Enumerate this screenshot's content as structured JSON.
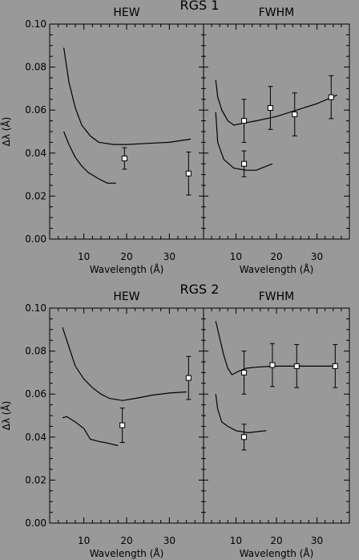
{
  "chart_data": [
    {
      "type": "line",
      "title": "RGS 1",
      "ylabel": "Δλ (Å)",
      "yticks": [
        "0.00",
        "0.02",
        "0.04",
        "0.06",
        "0.08",
        "0.10"
      ],
      "ylim": [
        0,
        0.1
      ],
      "panels": [
        {
          "title": "HEW",
          "xlabel": "Wavelength (Å)",
          "xticks": [
            "10",
            "20",
            "30"
          ],
          "xlim": [
            2,
            38
          ],
          "series": [
            {
              "style": "line",
              "points": [
                [
                  5.3,
                  0.089
                ],
                [
                  6.5,
                  0.073
                ],
                [
                  8,
                  0.061
                ],
                [
                  9.5,
                  0.053
                ],
                [
                  11.5,
                  0.048
                ],
                [
                  13.5,
                  0.045
                ],
                [
                  17,
                  0.044
                ],
                [
                  20,
                  0.044
                ],
                [
                  25,
                  0.0445
                ],
                [
                  30,
                  0.045
                ],
                [
                  35,
                  0.0465
                ]
              ]
            },
            {
              "style": "line",
              "points": [
                [
                  5.3,
                  0.05
                ],
                [
                  6.5,
                  0.044
                ],
                [
                  8,
                  0.038
                ],
                [
                  9.5,
                  0.034
                ],
                [
                  11,
                  0.031
                ],
                [
                  13.5,
                  0.028
                ],
                [
                  15.5,
                  0.026
                ],
                [
                  17.5,
                  0.026
                ]
              ]
            },
            {
              "style": "points",
              "points": [
                [
                  19.5,
                  0.0375,
                  0.005
                ],
                [
                  34.5,
                  0.0305,
                  0.01
                ]
              ]
            }
          ]
        },
        {
          "title": "FWHM",
          "xlabel": "Wavelength (Å)",
          "xticks": [
            "10",
            "20",
            "30"
          ],
          "xlim": [
            2,
            38
          ],
          "series": [
            {
              "style": "line",
              "points": [
                [
                  5,
                  0.074
                ],
                [
                  5.5,
                  0.066
                ],
                [
                  6.5,
                  0.06
                ],
                [
                  8,
                  0.055
                ],
                [
                  9.5,
                  0.053
                ],
                [
                  12,
                  0.054
                ],
                [
                  15,
                  0.055
                ],
                [
                  20,
                  0.057
                ],
                [
                  25,
                  0.06
                ],
                [
                  30,
                  0.063
                ],
                [
                  35,
                  0.067
                ]
              ]
            },
            {
              "style": "line",
              "points": [
                [
                  5,
                  0.059
                ],
                [
                  5.5,
                  0.045
                ],
                [
                  7,
                  0.037
                ],
                [
                  9.5,
                  0.033
                ],
                [
                  12.5,
                  0.032
                ],
                [
                  15,
                  0.032
                ],
                [
                  17,
                  0.0335
                ],
                [
                  19,
                  0.035
                ]
              ]
            },
            {
              "style": "points",
              "points": [
                [
                  12,
                  0.055,
                  0.01
                ],
                [
                  18.5,
                  0.061,
                  0.01
                ],
                [
                  24.5,
                  0.058,
                  0.01
                ],
                [
                  33.5,
                  0.066,
                  0.01
                ],
                [
                  12,
                  0.035,
                  0.006
                ]
              ]
            }
          ]
        }
      ]
    },
    {
      "type": "line",
      "title": "RGS 2",
      "ylabel": "Δλ (Å)",
      "yticks": [
        "0.00",
        "0.02",
        "0.04",
        "0.06",
        "0.08",
        "0.10"
      ],
      "ylim": [
        0,
        0.1
      ],
      "panels": [
        {
          "title": "HEW",
          "xlabel": "Wavelength (Å)",
          "xticks": [
            "10",
            "20",
            "30"
          ],
          "xlim": [
            2,
            38
          ],
          "series": [
            {
              "style": "line",
              "points": [
                [
                  5,
                  0.091
                ],
                [
                  6.5,
                  0.082
                ],
                [
                  8,
                  0.073
                ],
                [
                  10,
                  0.067
                ],
                [
                  12,
                  0.063
                ],
                [
                  14,
                  0.06
                ],
                [
                  16,
                  0.058
                ],
                [
                  19,
                  0.057
                ],
                [
                  22,
                  0.058
                ],
                [
                  26,
                  0.0595
                ],
                [
                  30,
                  0.0605
                ],
                [
                  34,
                  0.061
                ]
              ]
            },
            {
              "style": "line",
              "points": [
                [
                  5,
                  0.049
                ],
                [
                  6,
                  0.0495
                ],
                [
                  8,
                  0.047
                ],
                [
                  10,
                  0.044
                ],
                [
                  11.5,
                  0.039
                ],
                [
                  13.5,
                  0.038
                ],
                [
                  16,
                  0.037
                ],
                [
                  18,
                  0.036
                ]
              ]
            },
            {
              "style": "points",
              "points": [
                [
                  19,
                  0.0455,
                  0.008
                ],
                [
                  34.5,
                  0.0675,
                  0.01
                ]
              ]
            }
          ]
        },
        {
          "title": "FWHM",
          "xlabel": "Wavelength (Å)",
          "xticks": [
            "10",
            "20",
            "30"
          ],
          "xlim": [
            2,
            38
          ],
          "series": [
            {
              "style": "line",
              "points": [
                [
                  5,
                  0.094
                ],
                [
                  6,
                  0.086
                ],
                [
                  7,
                  0.078
                ],
                [
                  8,
                  0.072
                ],
                [
                  9,
                  0.069
                ],
                [
                  10.5,
                  0.0705
                ],
                [
                  12.5,
                  0.072
                ],
                [
                  15,
                  0.0725
                ],
                [
                  19,
                  0.073
                ],
                [
                  25,
                  0.073
                ],
                [
                  30,
                  0.073
                ],
                [
                  35,
                  0.073
                ]
              ]
            },
            {
              "style": "line",
              "points": [
                [
                  5,
                  0.06
                ],
                [
                  5.5,
                  0.053
                ],
                [
                  6.5,
                  0.047
                ],
                [
                  8,
                  0.045
                ],
                [
                  10,
                  0.043
                ],
                [
                  13,
                  0.042
                ],
                [
                  15,
                  0.0425
                ],
                [
                  17.5,
                  0.043
                ]
              ]
            },
            {
              "style": "points",
              "points": [
                [
                  12,
                  0.07,
                  0.01
                ],
                [
                  19,
                  0.0735,
                  0.01
                ],
                [
                  25,
                  0.073,
                  0.01
                ],
                [
                  34.5,
                  0.073,
                  0.01
                ],
                [
                  12,
                  0.04,
                  0.006
                ]
              ]
            }
          ]
        }
      ]
    }
  ]
}
